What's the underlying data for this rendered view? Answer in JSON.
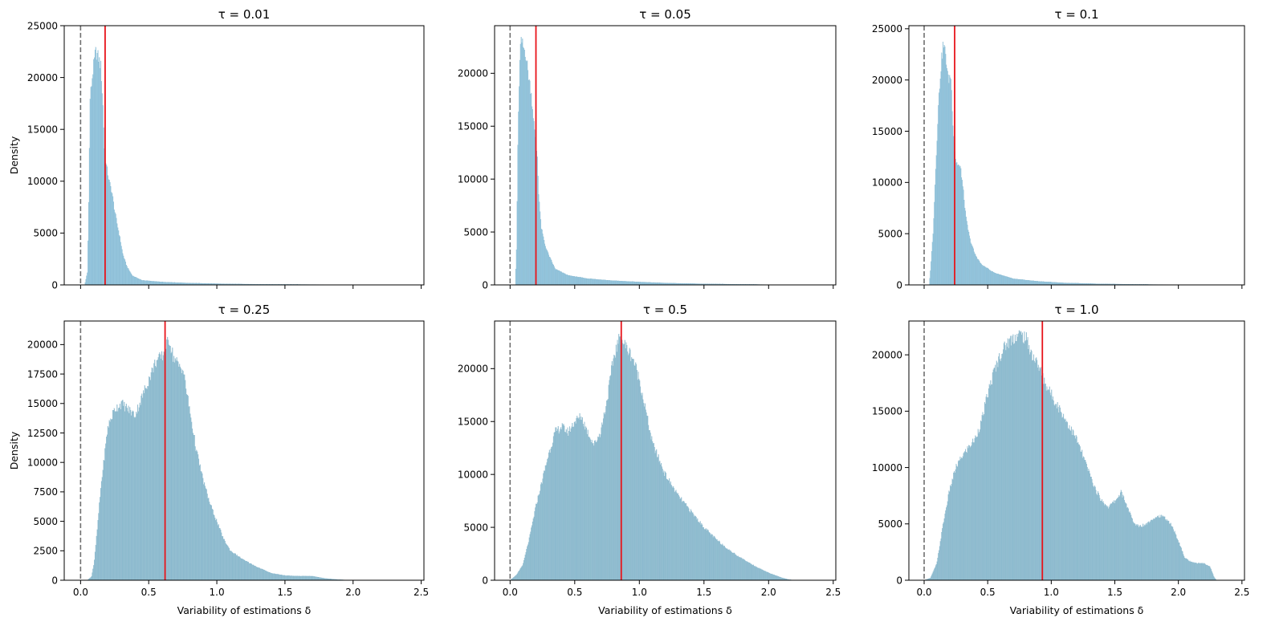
{
  "chart_data": [
    {
      "type": "histogram",
      "title": "τ = 0.01",
      "xlabel": "",
      "ylabel": "Density",
      "xlim": [
        -0.12,
        2.52
      ],
      "ylim": [
        0,
        25000
      ],
      "xticks": [
        0.0,
        0.5,
        1.0,
        1.5,
        2.0,
        2.5
      ],
      "xtick_labels": [],
      "yticks": [
        0,
        5000,
        10000,
        15000,
        20000,
        25000
      ],
      "ytick_labels": [
        "0",
        "5000",
        "10000",
        "15000",
        "20000",
        "25000"
      ],
      "reference_lines": [
        {
          "x": 0.0,
          "style": "dashed",
          "color": "#707070"
        },
        {
          "x": 0.18,
          "style": "solid",
          "color": "#e8141b"
        }
      ],
      "density_profile": [
        [
          0.0,
          0
        ],
        [
          0.03,
          0
        ],
        [
          0.05,
          1200
        ],
        [
          0.06,
          8000
        ],
        [
          0.07,
          18000
        ],
        [
          0.09,
          20500
        ],
        [
          0.11,
          22500
        ],
        [
          0.13,
          22000
        ],
        [
          0.15,
          21000
        ],
        [
          0.165,
          17000
        ],
        [
          0.175,
          13000
        ],
        [
          0.19,
          11500
        ],
        [
          0.21,
          10000
        ],
        [
          0.23,
          9000
        ],
        [
          0.25,
          7200
        ],
        [
          0.27,
          5800
        ],
        [
          0.29,
          4500
        ],
        [
          0.31,
          3000
        ],
        [
          0.34,
          1800
        ],
        [
          0.38,
          900
        ],
        [
          0.45,
          450
        ],
        [
          0.6,
          280
        ],
        [
          0.8,
          180
        ],
        [
          1.0,
          120
        ],
        [
          1.2,
          80
        ],
        [
          1.5,
          50
        ],
        [
          2.0,
          20
        ],
        [
          2.5,
          0
        ]
      ]
    },
    {
      "type": "histogram",
      "title": "τ = 0.05",
      "xlabel": "",
      "ylabel": "",
      "xlim": [
        -0.12,
        2.52
      ],
      "ylim": [
        0,
        24500
      ],
      "xticks": [
        0.0,
        0.5,
        1.0,
        1.5,
        2.0,
        2.5
      ],
      "xtick_labels": [],
      "yticks": [
        0,
        5000,
        10000,
        15000,
        20000
      ],
      "ytick_labels": [
        "0",
        "5000",
        "10000",
        "15000",
        "20000"
      ],
      "reference_lines": [
        {
          "x": 0.0,
          "style": "dashed",
          "color": "#707070"
        },
        {
          "x": 0.2,
          "style": "solid",
          "color": "#e8141b"
        }
      ],
      "density_profile": [
        [
          0.0,
          0
        ],
        [
          0.04,
          0
        ],
        [
          0.05,
          3500
        ],
        [
          0.06,
          13000
        ],
        [
          0.07,
          19000
        ],
        [
          0.08,
          22500
        ],
        [
          0.09,
          23000
        ],
        [
          0.1,
          22500
        ],
        [
          0.12,
          22000
        ],
        [
          0.14,
          20000
        ],
        [
          0.16,
          18500
        ],
        [
          0.18,
          16000
        ],
        [
          0.2,
          13000
        ],
        [
          0.21,
          12500
        ],
        [
          0.22,
          9000
        ],
        [
          0.24,
          5500
        ],
        [
          0.27,
          3800
        ],
        [
          0.3,
          2800
        ],
        [
          0.35,
          1500
        ],
        [
          0.45,
          900
        ],
        [
          0.6,
          600
        ],
        [
          0.8,
          400
        ],
        [
          1.0,
          280
        ],
        [
          1.2,
          180
        ],
        [
          1.5,
          100
        ],
        [
          2.0,
          30
        ],
        [
          2.5,
          0
        ]
      ]
    },
    {
      "type": "histogram",
      "title": "τ = 0.1",
      "xlabel": "",
      "ylabel": "",
      "xlim": [
        -0.12,
        2.52
      ],
      "ylim": [
        0,
        25300
      ],
      "xticks": [
        0.0,
        0.5,
        1.0,
        1.5,
        2.0,
        2.5
      ],
      "xtick_labels": [],
      "yticks": [
        0,
        5000,
        10000,
        15000,
        20000,
        25000
      ],
      "ytick_labels": [
        "0",
        "5000",
        "10000",
        "15000",
        "20000",
        "25000"
      ],
      "reference_lines": [
        {
          "x": 0.0,
          "style": "dashed",
          "color": "#707070"
        },
        {
          "x": 0.24,
          "style": "solid",
          "color": "#e8141b"
        }
      ],
      "density_profile": [
        [
          0.0,
          0
        ],
        [
          0.04,
          0
        ],
        [
          0.05,
          1500
        ],
        [
          0.07,
          5000
        ],
        [
          0.09,
          11000
        ],
        [
          0.11,
          17000
        ],
        [
          0.13,
          21000
        ],
        [
          0.15,
          23500
        ],
        [
          0.17,
          22500
        ],
        [
          0.19,
          20000
        ],
        [
          0.21,
          20500
        ],
        [
          0.23,
          15000
        ],
        [
          0.25,
          12000
        ],
        [
          0.27,
          11700
        ],
        [
          0.29,
          11200
        ],
        [
          0.31,
          9000
        ],
        [
          0.33,
          6500
        ],
        [
          0.36,
          4500
        ],
        [
          0.4,
          3000
        ],
        [
          0.45,
          2000
        ],
        [
          0.55,
          1200
        ],
        [
          0.7,
          600
        ],
        [
          0.9,
          350
        ],
        [
          1.1,
          200
        ],
        [
          1.4,
          100
        ],
        [
          1.8,
          40
        ],
        [
          2.5,
          0
        ]
      ]
    },
    {
      "type": "histogram",
      "title": "τ = 0.25",
      "xlabel": "Variability of estimations δ",
      "ylabel": "Density",
      "xlim": [
        -0.12,
        2.52
      ],
      "ylim": [
        0,
        22000
      ],
      "xticks": [
        0.0,
        0.5,
        1.0,
        1.5,
        2.0,
        2.5
      ],
      "xtick_labels": [
        "0.0",
        "0.5",
        "1.0",
        "1.5",
        "2.0",
        "2.5"
      ],
      "yticks": [
        0,
        2500,
        5000,
        7500,
        10000,
        12500,
        15000,
        17500,
        20000
      ],
      "ytick_labels": [
        "0",
        "2500",
        "5000",
        "7500",
        "10000",
        "12500",
        "15000",
        "17500",
        "20000"
      ],
      "reference_lines": [
        {
          "x": 0.0,
          "style": "dashed",
          "color": "#707070"
        },
        {
          "x": 0.62,
          "style": "solid",
          "color": "#e8141b"
        }
      ],
      "density_profile": [
        [
          0.0,
          0
        ],
        [
          0.05,
          0
        ],
        [
          0.08,
          300
        ],
        [
          0.1,
          1500
        ],
        [
          0.12,
          4000
        ],
        [
          0.15,
          8000
        ],
        [
          0.18,
          11000
        ],
        [
          0.2,
          13000
        ],
        [
          0.25,
          14500
        ],
        [
          0.3,
          15000
        ],
        [
          0.35,
          14500
        ],
        [
          0.4,
          14000
        ],
        [
          0.45,
          15500
        ],
        [
          0.5,
          17000
        ],
        [
          0.55,
          18500
        ],
        [
          0.6,
          19000
        ],
        [
          0.62,
          19500
        ],
        [
          0.65,
          20500
        ],
        [
          0.68,
          19000
        ],
        [
          0.72,
          18200
        ],
        [
          0.75,
          18000
        ],
        [
          0.8,
          14500
        ],
        [
          0.85,
          11000
        ],
        [
          0.9,
          8500
        ],
        [
          0.95,
          6500
        ],
        [
          1.0,
          5000
        ],
        [
          1.05,
          3500
        ],
        [
          1.1,
          2500
        ],
        [
          1.2,
          1700
        ],
        [
          1.3,
          1100
        ],
        [
          1.4,
          600
        ],
        [
          1.5,
          400
        ],
        [
          1.6,
          350
        ],
        [
          1.7,
          350
        ],
        [
          1.8,
          150
        ],
        [
          1.9,
          50
        ],
        [
          2.0,
          0
        ],
        [
          2.5,
          0
        ]
      ]
    },
    {
      "type": "histogram",
      "title": "τ = 0.5",
      "xlabel": "Variability of estimations δ",
      "ylabel": "",
      "xlim": [
        -0.12,
        2.52
      ],
      "ylim": [
        0,
        24500
      ],
      "xticks": [
        0.0,
        0.5,
        1.0,
        1.5,
        2.0,
        2.5
      ],
      "xtick_labels": [
        "0.0",
        "0.5",
        "1.0",
        "1.5",
        "2.0",
        "2.5"
      ],
      "yticks": [
        0,
        5000,
        10000,
        15000,
        20000
      ],
      "ytick_labels": [
        "0",
        "5000",
        "10000",
        "15000",
        "20000"
      ],
      "reference_lines": [
        {
          "x": 0.0,
          "style": "dashed",
          "color": "#707070"
        },
        {
          "x": 0.86,
          "style": "solid",
          "color": "#e8141b"
        }
      ],
      "density_profile": [
        [
          0.0,
          0
        ],
        [
          0.02,
          200
        ],
        [
          0.05,
          500
        ],
        [
          0.1,
          1500
        ],
        [
          0.15,
          4000
        ],
        [
          0.2,
          7000
        ],
        [
          0.25,
          9500
        ],
        [
          0.3,
          12000
        ],
        [
          0.35,
          14000
        ],
        [
          0.4,
          14500
        ],
        [
          0.45,
          14000
        ],
        [
          0.5,
          15000
        ],
        [
          0.55,
          15500
        ],
        [
          0.6,
          14000
        ],
        [
          0.65,
          12800
        ],
        [
          0.7,
          14000
        ],
        [
          0.75,
          17000
        ],
        [
          0.8,
          21000
        ],
        [
          0.85,
          23000
        ],
        [
          0.9,
          22000
        ],
        [
          0.95,
          21000
        ],
        [
          1.0,
          19000
        ],
        [
          1.05,
          16000
        ],
        [
          1.1,
          13000
        ],
        [
          1.15,
          11500
        ],
        [
          1.2,
          10000
        ],
        [
          1.3,
          8000
        ],
        [
          1.4,
          6500
        ],
        [
          1.5,
          5000
        ],
        [
          1.6,
          3800
        ],
        [
          1.7,
          2800
        ],
        [
          1.8,
          2000
        ],
        [
          1.9,
          1300
        ],
        [
          2.0,
          700
        ],
        [
          2.1,
          250
        ],
        [
          2.15,
          80
        ],
        [
          2.2,
          0
        ],
        [
          2.5,
          0
        ]
      ]
    },
    {
      "type": "histogram",
      "title": "τ = 1.0",
      "xlabel": "Variability of estimations δ",
      "ylabel": "",
      "xlim": [
        -0.12,
        2.52
      ],
      "ylim": [
        0,
        23000
      ],
      "xticks": [
        0.0,
        0.5,
        1.0,
        1.5,
        2.0,
        2.5
      ],
      "xtick_labels": [
        "0.0",
        "0.5",
        "1.0",
        "1.5",
        "2.0",
        "2.5"
      ],
      "yticks": [
        0,
        5000,
        10000,
        15000,
        20000
      ],
      "ytick_labels": [
        "0",
        "5000",
        "10000",
        "15000",
        "20000"
      ],
      "reference_lines": [
        {
          "x": 0.0,
          "style": "dashed",
          "color": "#707070"
        },
        {
          "x": 0.93,
          "style": "solid",
          "color": "#e8141b"
        }
      ],
      "density_profile": [
        [
          0.0,
          0
        ],
        [
          0.05,
          200
        ],
        [
          0.1,
          1500
        ],
        [
          0.15,
          5000
        ],
        [
          0.2,
          8000
        ],
        [
          0.25,
          10000
        ],
        [
          0.3,
          11000
        ],
        [
          0.35,
          11800
        ],
        [
          0.4,
          12500
        ],
        [
          0.45,
          14000
        ],
        [
          0.5,
          16500
        ],
        [
          0.55,
          18500
        ],
        [
          0.6,
          20000
        ],
        [
          0.65,
          21000
        ],
        [
          0.7,
          21500
        ],
        [
          0.75,
          21800
        ],
        [
          0.8,
          21500
        ],
        [
          0.85,
          20000
        ],
        [
          0.9,
          19000
        ],
        [
          0.93,
          18200
        ],
        [
          0.95,
          17500
        ],
        [
          1.0,
          16500
        ],
        [
          1.05,
          15500
        ],
        [
          1.1,
          14500
        ],
        [
          1.15,
          13500
        ],
        [
          1.2,
          12500
        ],
        [
          1.25,
          11000
        ],
        [
          1.3,
          9500
        ],
        [
          1.35,
          8000
        ],
        [
          1.4,
          7000
        ],
        [
          1.45,
          6500
        ],
        [
          1.5,
          7000
        ],
        [
          1.55,
          7800
        ],
        [
          1.6,
          6500
        ],
        [
          1.65,
          5000
        ],
        [
          1.7,
          4800
        ],
        [
          1.75,
          5000
        ],
        [
          1.8,
          5500
        ],
        [
          1.85,
          5700
        ],
        [
          1.9,
          5500
        ],
        [
          1.95,
          4800
        ],
        [
          2.0,
          3500
        ],
        [
          2.05,
          2000
        ],
        [
          2.1,
          1600
        ],
        [
          2.15,
          1500
        ],
        [
          2.2,
          1500
        ],
        [
          2.25,
          1200
        ],
        [
          2.28,
          300
        ],
        [
          2.3,
          0
        ],
        [
          2.5,
          0
        ]
      ]
    }
  ],
  "style": {
    "bar_fill_top": "#92c5de",
    "bar_fill_bottom": "#8fbccf",
    "bar_edge": "#7fb0c8",
    "mean_line_color": "#e8141b",
    "zero_line_color": "#707070",
    "axis_color": "#000000",
    "grid": false,
    "legend": "none"
  }
}
